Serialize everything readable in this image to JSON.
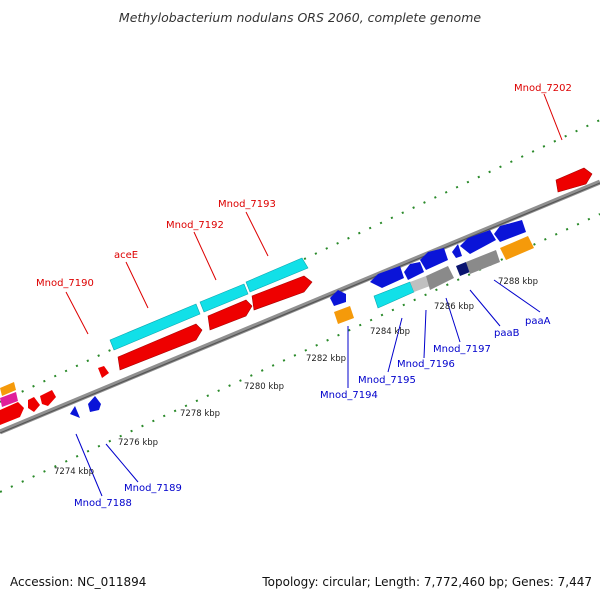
{
  "title": "Methylobacterium nodulans ORS 2060, complete genome",
  "footer": {
    "accession": "Accession: NC_011894",
    "topology": "Topology: circular; Length: 7,772,460 bp; Genes: 7,447"
  },
  "ticks": [
    "7274 kbp",
    "7276 kbp",
    "7278 kbp",
    "7280 kbp",
    "7282 kbp",
    "7284 kbp",
    "7286 kbp",
    "7288 kbp"
  ],
  "labels_top": [
    "Mnod_7190",
    "aceE",
    "Mnod_7192",
    "Mnod_7193",
    "Mnod_7202"
  ],
  "labels_bottom": [
    "Mnod_7188",
    "Mnod_7189",
    "Mnod_7194",
    "Mnod_7195",
    "Mnod_7196",
    "Mnod_7197",
    "paaB",
    "paaA"
  ],
  "colors": {
    "red": "#ee0000",
    "cyan": "#11e0e8",
    "blue": "#0a14d8",
    "orange": "#f59a0a",
    "gray": "#8a8a8a",
    "magenta": "#e0209a",
    "navy": "#0a1470",
    "dots": "#2a8a2a"
  }
}
